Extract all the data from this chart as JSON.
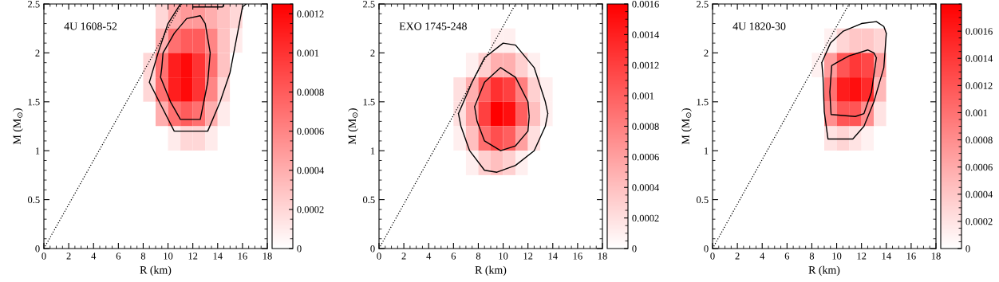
{
  "chart_data": [
    {
      "type": "heatmap",
      "xlabel": "R (km)",
      "ylabel": "M (M$_{⊙}$)",
      "annotations": [
        "4U 1608-52"
      ],
      "xlim": [
        0,
        18
      ],
      "ylim": [
        0,
        2.5
      ],
      "xticks": [
        0,
        2,
        4,
        6,
        8,
        10,
        12,
        14,
        16,
        18
      ],
      "yticks": [
        0,
        0.5,
        1,
        1.5,
        2,
        2.5
      ],
      "clim": [
        0,
        0.00125
      ],
      "cticks": [
        0,
        0.0002,
        0.0004,
        0.0006,
        0.0008,
        0.001,
        0.0012
      ],
      "grid": false,
      "cells": [
        [
          0,
          0,
          0,
          0,
          0,
          0,
          0,
          0,
          0,
          0.0002,
          0.0004,
          0.0005,
          0.0005,
          0.0004,
          0.0003,
          0.0002,
          0,
          0
        ],
        [
          0,
          0,
          0,
          0,
          0,
          0,
          0,
          0,
          0,
          0.0004,
          0.0007,
          0.0008,
          0.0008,
          0.0006,
          0.0003,
          0.0001,
          0,
          0
        ],
        [
          0,
          0,
          0,
          0,
          0,
          0,
          0,
          0,
          0.0002,
          0.0007,
          0.0011,
          0.0012,
          0.001,
          0.0007,
          0.0003,
          0,
          0,
          0
        ],
        [
          0,
          0,
          0,
          0,
          0,
          0,
          0,
          0,
          0.0002,
          0.0007,
          0.0011,
          0.0012,
          0.001,
          0.0006,
          0.0002,
          0,
          0,
          0
        ],
        [
          0,
          0,
          0,
          0,
          0,
          0,
          0,
          0,
          0,
          0.0004,
          0.0007,
          0.0008,
          0.0007,
          0.0004,
          0.0001,
          0,
          0,
          0
        ],
        [
          0,
          0,
          0,
          0,
          0,
          0,
          0,
          0,
          0,
          0,
          0.0001,
          0.0002,
          0.0002,
          0.0001,
          0,
          0,
          0,
          0
        ],
        [
          0,
          0,
          0,
          0,
          0,
          0,
          0,
          0,
          0,
          0,
          0,
          0,
          0,
          0,
          0,
          0,
          0,
          0
        ],
        [
          0,
          0,
          0,
          0,
          0,
          0,
          0,
          0,
          0,
          0,
          0,
          0,
          0,
          0,
          0,
          0,
          0,
          0
        ],
        [
          0,
          0,
          0,
          0,
          0,
          0,
          0,
          0,
          0,
          0,
          0,
          0,
          0,
          0,
          0,
          0,
          0,
          0
        ],
        [
          0,
          0,
          0,
          0,
          0,
          0,
          0,
          0,
          0,
          0,
          0,
          0,
          0,
          0,
          0,
          0,
          0,
          0
        ]
      ],
      "series": [
        {
          "type": "line",
          "color": "#000000",
          "line_style": "dotted",
          "x": [
            0,
            11.1
          ],
          "values": [
            0,
            2.5
          ]
        },
        {
          "type": "line",
          "color": "#000000",
          "x": [
            8.5,
            9.2,
            10.0,
            11.0,
            null,
            8.5,
            9.5,
            10.5,
            13.2,
            14.2,
            15.0,
            15.6,
            16.0,
            16.3
          ],
          "values": [
            1.7,
            2.0,
            2.3,
            2.5,
            null,
            1.7,
            1.45,
            1.2,
            1.2,
            1.5,
            1.8,
            2.2,
            2.47,
            2.5
          ]
        },
        {
          "type": "line",
          "color": "#000000",
          "x": [
            9.4,
            9.5,
            9.6,
            10.5,
            11.5,
            12.6,
            13.0,
            13.4,
            null,
            9.4,
            10.2,
            11.0,
            12.6,
            13.2,
            13.4
          ],
          "values": [
            1.75,
            1.85,
            2.0,
            2.2,
            2.35,
            2.38,
            2.3,
            2.0,
            null,
            1.75,
            1.5,
            1.32,
            1.32,
            1.7,
            2.0
          ]
        },
        {
          "type": "line",
          "color": "#000000",
          "x": [
            12.0,
            14.4,
            14.5
          ],
          "values": [
            2.47,
            2.47,
            2.5
          ]
        }
      ]
    },
    {
      "type": "heatmap",
      "xlabel": "R (km)",
      "ylabel": "M (M$_{⊙}$)",
      "annotations": [
        "EXO 1745-248"
      ],
      "xlim": [
        0,
        18
      ],
      "ylim": [
        0,
        2.5
      ],
      "xticks": [
        0,
        2,
        4,
        6,
        8,
        10,
        12,
        14,
        16,
        18
      ],
      "yticks": [
        0,
        0.5,
        1,
        1.5,
        2,
        2.5
      ],
      "clim": [
        0,
        0.0016
      ],
      "cticks": [
        0,
        0.0002,
        0.0004,
        0.0006,
        0.0008,
        0.001,
        0.0012,
        0.0014,
        0.0016
      ],
      "grid": false,
      "cells": [
        [
          0,
          0,
          0,
          0,
          0,
          0,
          0,
          0,
          0,
          0,
          0,
          0,
          0,
          0,
          0,
          0,
          0,
          0
        ],
        [
          0,
          0,
          0,
          0,
          0,
          0,
          0,
          0,
          0,
          0.0001,
          0.0001,
          0,
          0,
          0,
          0,
          0,
          0,
          0
        ],
        [
          0,
          0,
          0,
          0,
          0,
          0,
          0,
          0.0001,
          0.0003,
          0.0005,
          0.0005,
          0.0003,
          0.0001,
          0,
          0,
          0,
          0,
          0
        ],
        [
          0,
          0,
          0,
          0,
          0,
          0,
          0.0002,
          0.0005,
          0.001,
          0.0013,
          0.0012,
          0.0008,
          0.0003,
          0.0001,
          0,
          0,
          0,
          0
        ],
        [
          0,
          0,
          0,
          0,
          0,
          0,
          0.0002,
          0.0006,
          0.0012,
          0.0016,
          0.0015,
          0.001,
          0.0004,
          0.0001,
          0,
          0,
          0,
          0
        ],
        [
          0,
          0,
          0,
          0,
          0,
          0,
          0.0001,
          0.0004,
          0.0009,
          0.0011,
          0.001,
          0.0006,
          0.0002,
          0,
          0,
          0,
          0,
          0
        ],
        [
          0,
          0,
          0,
          0,
          0,
          0,
          0,
          0.0001,
          0.0003,
          0.0004,
          0.0003,
          0.0001,
          0,
          0,
          0,
          0,
          0,
          0
        ],
        [
          0,
          0,
          0,
          0,
          0,
          0,
          0,
          0,
          0,
          0,
          0,
          0,
          0,
          0,
          0,
          0,
          0,
          0
        ],
        [
          0,
          0,
          0,
          0,
          0,
          0,
          0,
          0,
          0,
          0,
          0,
          0,
          0,
          0,
          0,
          0,
          0,
          0
        ],
        [
          0,
          0,
          0,
          0,
          0,
          0,
          0,
          0,
          0,
          0,
          0,
          0,
          0,
          0,
          0,
          0,
          0,
          0
        ]
      ],
      "series": [
        {
          "type": "line",
          "color": "#000000",
          "line_style": "dotted",
          "x": [
            0,
            11.0
          ],
          "values": [
            0,
            2.5
          ]
        },
        {
          "type": "line",
          "color": "#000000",
          "x": [
            6.4,
            7.5,
            8.5,
            10,
            11,
            12.5,
            13.4,
            13.6,
            null,
            6.4,
            6.6,
            7.3,
            8.5,
            9.5,
            11,
            12.5,
            13.4,
            13.6
          ],
          "values": [
            1.38,
            1.7,
            1.95,
            2.1,
            2.08,
            1.85,
            1.5,
            1.38,
            null,
            1.38,
            1.25,
            1.0,
            0.8,
            0.78,
            0.85,
            1.0,
            1.25,
            1.38
          ]
        },
        {
          "type": "line",
          "color": "#000000",
          "x": [
            7.7,
            8.5,
            9.8,
            11,
            12.0,
            12.1,
            null,
            7.7,
            7.9,
            8.5,
            9.8,
            11,
            12.0,
            12.1
          ],
          "values": [
            1.45,
            1.7,
            1.85,
            1.75,
            1.5,
            1.35,
            null,
            1.45,
            1.3,
            1.1,
            1.0,
            1.05,
            1.2,
            1.35
          ]
        }
      ]
    },
    {
      "type": "heatmap",
      "xlabel": "R (km)",
      "ylabel": "M (M$_{⊙}$)",
      "annotations": [
        "4U 1820-30"
      ],
      "xlim": [
        0,
        18
      ],
      "ylim": [
        0,
        2.5
      ],
      "xticks": [
        0,
        2,
        4,
        6,
        8,
        10,
        12,
        14,
        16,
        18
      ],
      "yticks": [
        0,
        0.5,
        1,
        1.5,
        2,
        2.5
      ],
      "clim": [
        0,
        0.0018
      ],
      "cticks": [
        0,
        0.0002,
        0.0004,
        0.0006,
        0.0008,
        0.001,
        0.0012,
        0.0014,
        0.0016
      ],
      "grid": false,
      "cells": [
        [
          0,
          0,
          0,
          0,
          0,
          0,
          0,
          0,
          0,
          0,
          0,
          0,
          0,
          0,
          0,
          0,
          0,
          0
        ],
        [
          0,
          0,
          0,
          0,
          0,
          0,
          0,
          0,
          0,
          0.0001,
          0.0003,
          0.0004,
          0.0004,
          0.0003,
          0,
          0,
          0,
          0
        ],
        [
          0,
          0,
          0,
          0,
          0,
          0,
          0,
          0,
          0.0001,
          0.0007,
          0.0012,
          0.0014,
          0.0013,
          0.0007,
          0,
          0,
          0,
          0
        ],
        [
          0,
          0,
          0,
          0,
          0,
          0,
          0,
          0,
          0,
          0.001,
          0.0016,
          0.0017,
          0.0015,
          0.0005,
          0,
          0,
          0,
          0
        ],
        [
          0,
          0,
          0,
          0,
          0,
          0,
          0,
          0,
          0,
          0.0008,
          0.0012,
          0.0012,
          0.0008,
          0.0002,
          0,
          0,
          0,
          0
        ],
        [
          0,
          0,
          0,
          0,
          0,
          0,
          0,
          0,
          0,
          0.0002,
          0.0003,
          0.0002,
          0.0001,
          0,
          0,
          0,
          0,
          0
        ],
        [
          0,
          0,
          0,
          0,
          0,
          0,
          0,
          0,
          0,
          0,
          0,
          0,
          0,
          0,
          0,
          0,
          0,
          0
        ],
        [
          0,
          0,
          0,
          0,
          0,
          0,
          0,
          0,
          0,
          0,
          0,
          0,
          0,
          0,
          0,
          0,
          0,
          0
        ],
        [
          0,
          0,
          0,
          0,
          0,
          0,
          0,
          0,
          0,
          0,
          0,
          0,
          0,
          0,
          0,
          0,
          0,
          0
        ],
        [
          0,
          0,
          0,
          0,
          0,
          0,
          0,
          0,
          0,
          0,
          0,
          0,
          0,
          0,
          0,
          0,
          0,
          0
        ]
      ],
      "series": [
        {
          "type": "line",
          "color": "#000000",
          "line_style": "dotted",
          "x": [
            0,
            11.0
          ],
          "values": [
            0,
            2.5
          ]
        },
        {
          "type": "line",
          "color": "#000000",
          "x": [
            8.8,
            9.5,
            10.5,
            12,
            13.2,
            13.8,
            14.0,
            null,
            8.8,
            8.9,
            9.0,
            9.3,
            11.3,
            12.2,
            13.0,
            13.8,
            14.0
          ],
          "values": [
            1.9,
            2.1,
            2.22,
            2.3,
            2.32,
            2.27,
            2.2,
            null,
            1.9,
            1.75,
            1.4,
            1.12,
            1.12,
            1.25,
            1.5,
            1.85,
            2.2
          ]
        },
        {
          "type": "line",
          "color": "#000000",
          "x": [
            9.45,
            9.6,
            10,
            11,
            12.5,
            13.0,
            13.2,
            null,
            9.45,
            9.55,
            11.5,
            12.2,
            12.8,
            13.2
          ],
          "values": [
            1.6,
            1.87,
            1.9,
            1.97,
            2.03,
            2.0,
            1.95,
            null,
            1.6,
            1.37,
            1.35,
            1.38,
            1.6,
            1.95
          ]
        }
      ]
    }
  ]
}
